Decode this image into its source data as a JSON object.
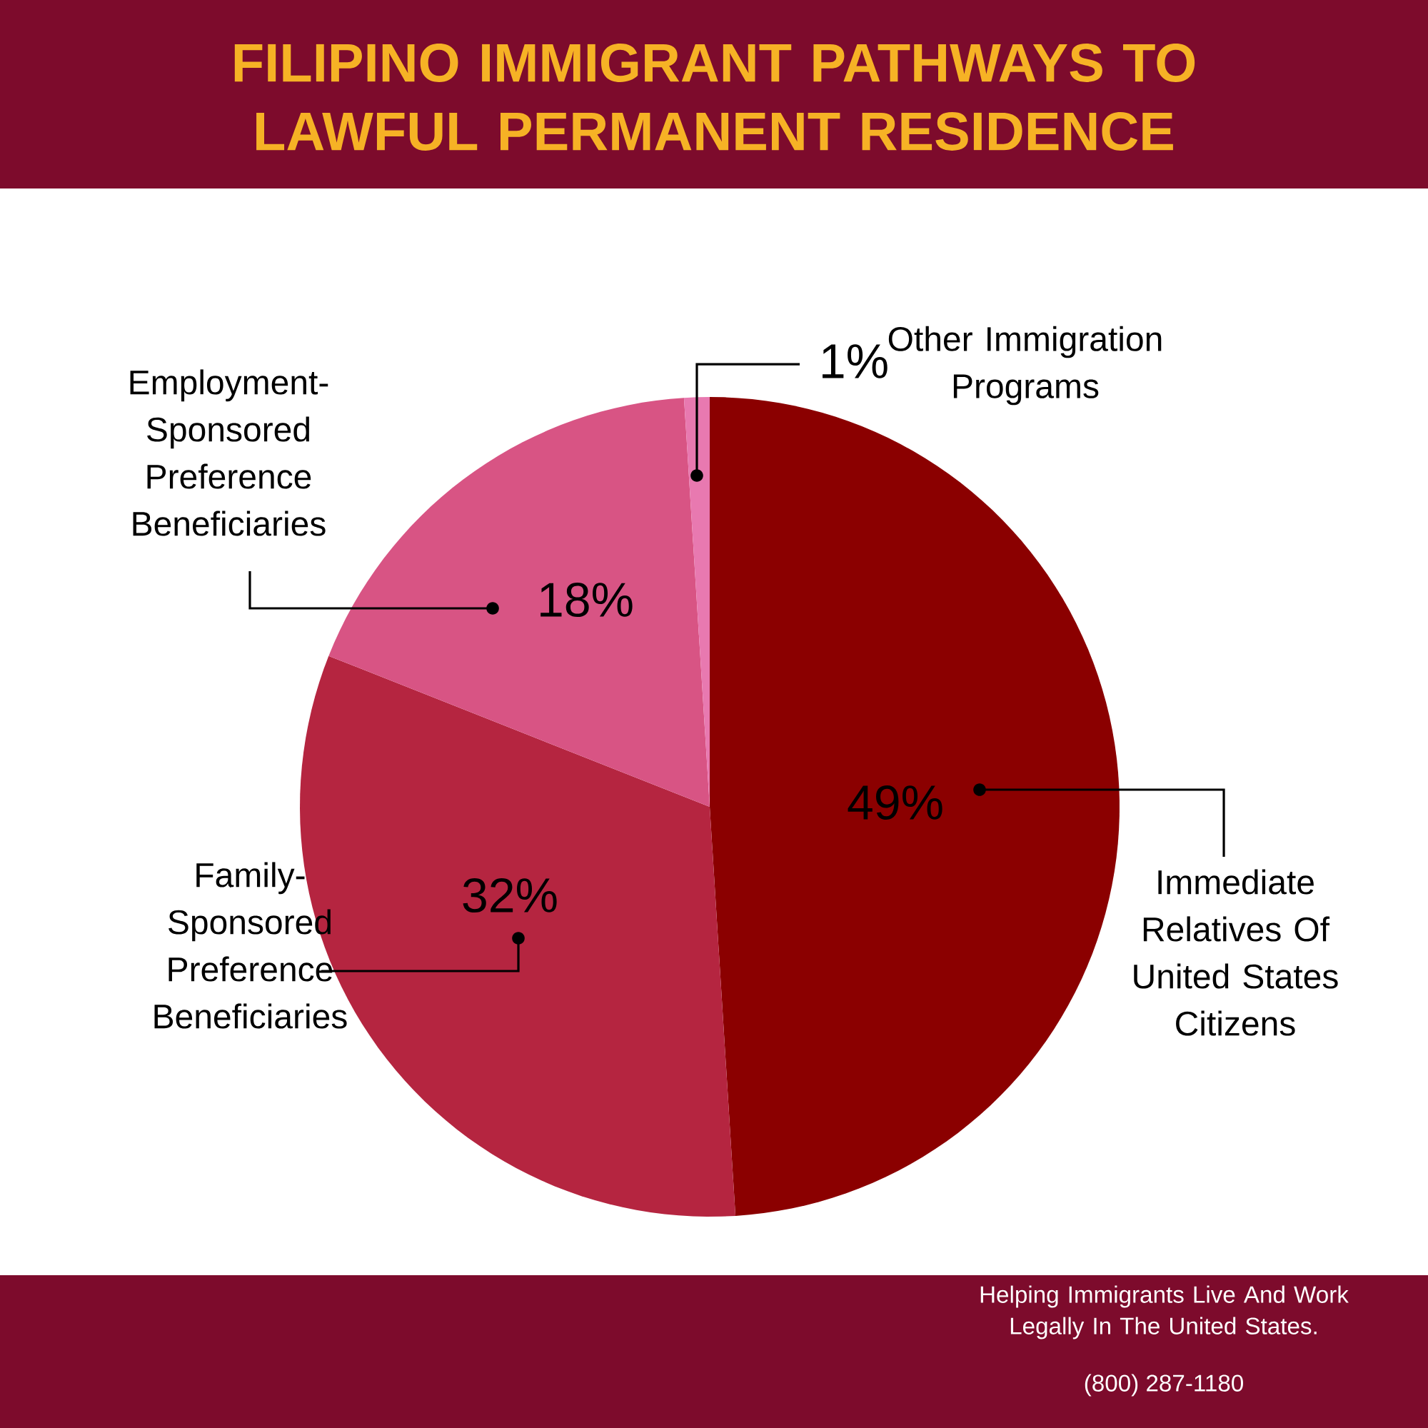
{
  "chart_data": {
    "type": "pie",
    "title": "FILIPINO IMMIGRANT PATHWAYS TO LAWFUL PERMANENT RESIDENCE",
    "categories": [
      "Immediate Relatives Of United States Citizens",
      "Family-Sponsored Preference Beneficiaries",
      "Employment-Sponsored Preference Beneficiaries",
      "Other Immigration Programs"
    ],
    "values": [
      49,
      32,
      18,
      1
    ],
    "value_labels": [
      "49%",
      "32%",
      "18%",
      "1%"
    ],
    "colors": [
      "#8b0000",
      "#b52540",
      "#d85484",
      "#e879b0"
    ],
    "annotations": [
      "Helping Immigrants Live And Work Legally In The United States.",
      "(800) 287-1180"
    ]
  }
}
